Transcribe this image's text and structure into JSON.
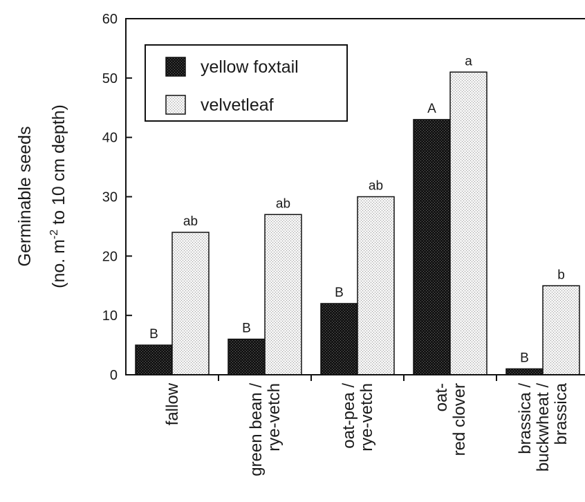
{
  "chart_data": {
    "type": "bar",
    "ylabel": "Germinable seeds",
    "ylabel_units": {
      "prefix": "(no. m",
      "superscript": "-2",
      "suffix": " to 10 cm depth)"
    },
    "ylim": [
      0,
      60
    ],
    "yticks": [
      "0",
      "10",
      "20",
      "30",
      "40",
      "50",
      "60"
    ],
    "legend_position": "top-left",
    "categories": [
      [
        "fallow"
      ],
      [
        "green bean /",
        "rye-vetch"
      ],
      [
        "oat-pea /",
        "rye-vetch"
      ],
      [
        "oat-",
        "red clover"
      ],
      [
        "brassica /",
        "buckwheat /",
        "brassica"
      ]
    ],
    "series": [
      {
        "name": "yellow foxtail",
        "values": [
          5,
          6,
          12,
          43,
          1
        ],
        "labels": [
          "B",
          "B",
          "B",
          "A",
          "B"
        ],
        "color": "#222222",
        "pattern": "dark-stipple"
      },
      {
        "name": "velvetleaf",
        "values": [
          24,
          27,
          30,
          51,
          15
        ],
        "labels": [
          "ab",
          "ab",
          "ab",
          "a",
          "b"
        ],
        "color": "#dcdcdc",
        "pattern": "light-stipple"
      }
    ]
  }
}
